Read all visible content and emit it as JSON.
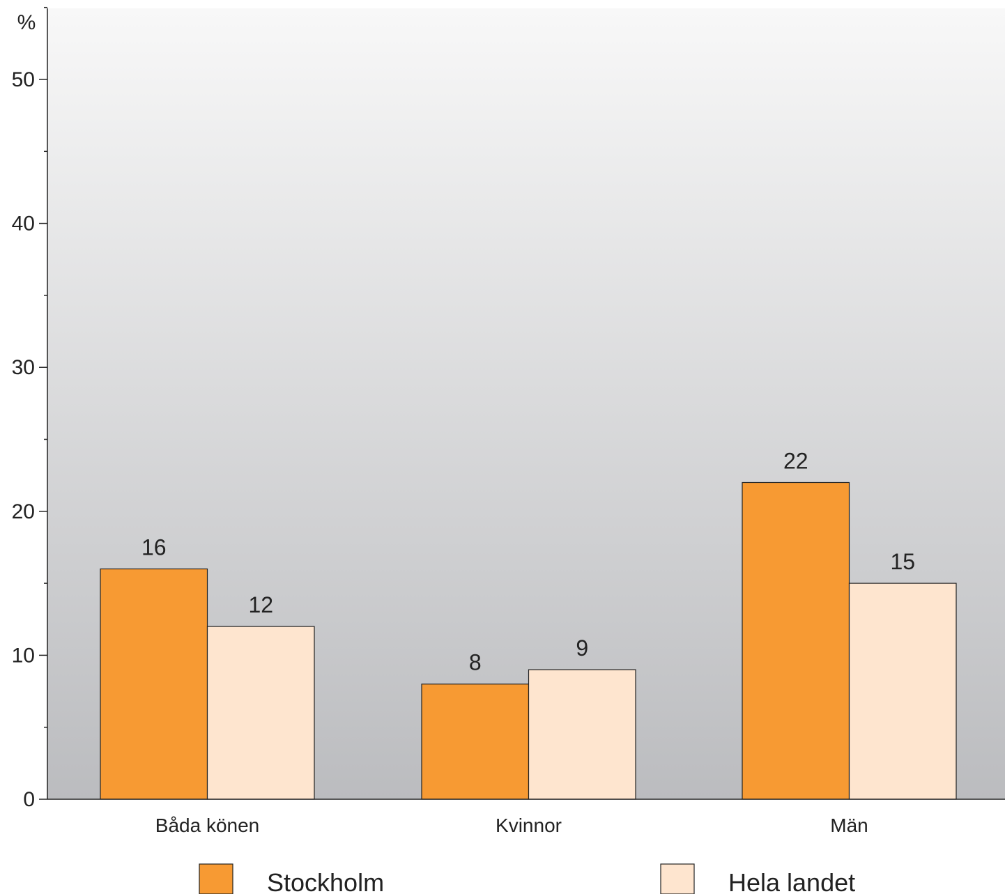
{
  "chart_data": {
    "type": "bar",
    "ylabel": "%",
    "ylim": [
      0,
      55
    ],
    "yticks": [
      0,
      10,
      20,
      30,
      40,
      50
    ],
    "categories": [
      "Båda könen",
      "Kvinnor",
      "Män"
    ],
    "series": [
      {
        "name": "Stockholm",
        "values": [
          16,
          8,
          22
        ],
        "color": "#f79a33"
      },
      {
        "name": "Hela landet",
        "values": [
          12,
          9,
          15
        ],
        "color": "#fee5cf"
      }
    ],
    "legend_position": "bottom",
    "grid": false,
    "background_gradient": [
      "#f8f8f8",
      "#bbbcbf"
    ],
    "data_labels": true
  }
}
